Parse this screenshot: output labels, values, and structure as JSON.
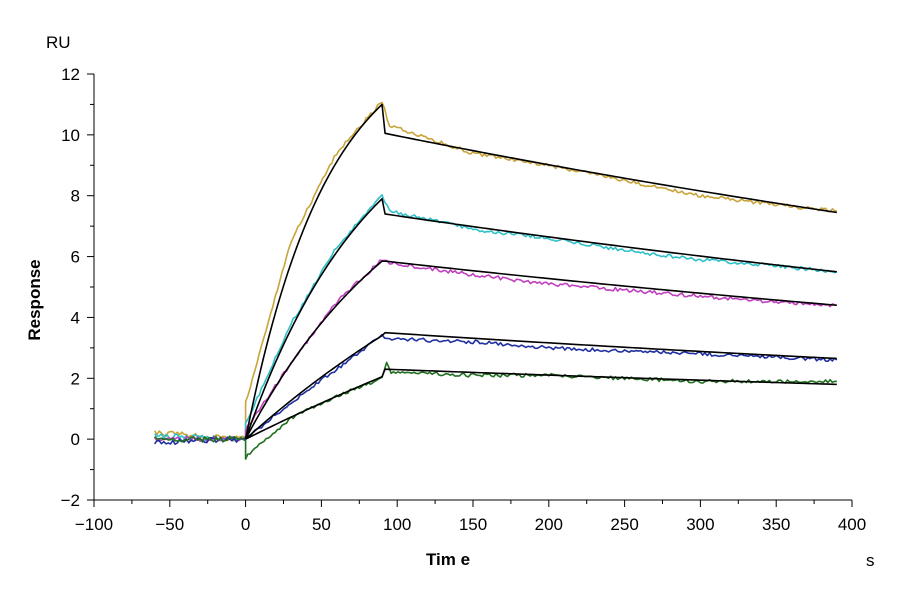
{
  "chart_data": {
    "type": "line",
    "y_unit": "RU",
    "x_unit": "s",
    "xlabel": "Tim e",
    "ylabel": "Response",
    "xlim": [
      -100,
      400
    ],
    "ylim": [
      -2,
      12
    ],
    "x_ticks": [
      -100,
      -50,
      0,
      50,
      100,
      150,
      200,
      250,
      300,
      350,
      400
    ],
    "y_ticks": [
      -2,
      0,
      2,
      4,
      6,
      8,
      10,
      12
    ],
    "grid": false,
    "legend": "none",
    "baseline_start": -60,
    "association_start": 0,
    "dissociation_start": 90,
    "end_time": 390,
    "colors": {
      "fit": "#000000",
      "axis": "#000000"
    },
    "series": [
      {
        "color": "#c9a43a",
        "values": [
          [
            -60,
            0.2
          ],
          [
            0,
            0.0
          ],
          [
            0,
            1.2
          ],
          [
            30,
            6.5
          ],
          [
            60,
            9.4
          ],
          [
            90,
            11.1
          ],
          [
            95,
            10.3
          ],
          [
            150,
            9.4
          ],
          [
            200,
            9.0
          ],
          [
            250,
            8.5
          ],
          [
            300,
            8.0
          ],
          [
            350,
            7.7
          ],
          [
            390,
            7.5
          ]
        ]
      },
      {
        "color": "#30c0c8",
        "values": [
          [
            -60,
            0.1
          ],
          [
            0,
            0.0
          ],
          [
            0,
            0.5
          ],
          [
            30,
            3.8
          ],
          [
            60,
            6.3
          ],
          [
            90,
            8.0
          ],
          [
            95,
            7.5
          ],
          [
            150,
            6.9
          ],
          [
            200,
            6.6
          ],
          [
            250,
            6.2
          ],
          [
            300,
            5.9
          ],
          [
            350,
            5.7
          ],
          [
            390,
            5.5
          ]
        ]
      },
      {
        "color": "#c040c0",
        "values": [
          [
            -60,
            0.0
          ],
          [
            0,
            0.0
          ],
          [
            0,
            0.3
          ],
          [
            30,
            2.5
          ],
          [
            60,
            4.5
          ],
          [
            90,
            5.9
          ],
          [
            95,
            5.8
          ],
          [
            150,
            5.4
          ],
          [
            200,
            5.1
          ],
          [
            250,
            4.9
          ],
          [
            300,
            4.7
          ],
          [
            350,
            4.5
          ],
          [
            390,
            4.4
          ]
        ]
      },
      {
        "color": "#2030a0",
        "values": [
          [
            -60,
            -0.1
          ],
          [
            0,
            0.0
          ],
          [
            0,
            0.0
          ],
          [
            30,
            1.2
          ],
          [
            60,
            2.3
          ],
          [
            90,
            3.4
          ],
          [
            95,
            3.3
          ],
          [
            150,
            3.2
          ],
          [
            200,
            3.0
          ],
          [
            250,
            2.9
          ],
          [
            300,
            2.8
          ],
          [
            350,
            2.7
          ],
          [
            390,
            2.6
          ]
        ]
      },
      {
        "color": "#207020",
        "values": [
          [
            -60,
            0.0
          ],
          [
            0,
            0.0
          ],
          [
            0,
            -0.6
          ],
          [
            30,
            0.7
          ],
          [
            60,
            1.4
          ],
          [
            90,
            2.0
          ],
          [
            93,
            2.5
          ],
          [
            96,
            2.2
          ],
          [
            150,
            2.1
          ],
          [
            200,
            2.1
          ],
          [
            250,
            2.0
          ],
          [
            300,
            1.9
          ],
          [
            350,
            1.9
          ],
          [
            390,
            1.9
          ]
        ]
      }
    ],
    "fits": [
      {
        "plateau": 11.0,
        "k_on": 0.0186,
        "post": 10.05,
        "end": 7.45
      },
      {
        "plateau": 7.9,
        "k_on": 0.012,
        "post": 7.4,
        "end": 5.5
      },
      {
        "plateau": 5.85,
        "k_on": 0.009,
        "post": 5.85,
        "end": 4.4
      },
      {
        "plateau": 3.4,
        "k_on": 0.004,
        "post": 3.5,
        "end": 2.65
      },
      {
        "plateau": 2.05,
        "k_on": 0.002,
        "post": 2.3,
        "end": 1.8
      }
    ]
  }
}
